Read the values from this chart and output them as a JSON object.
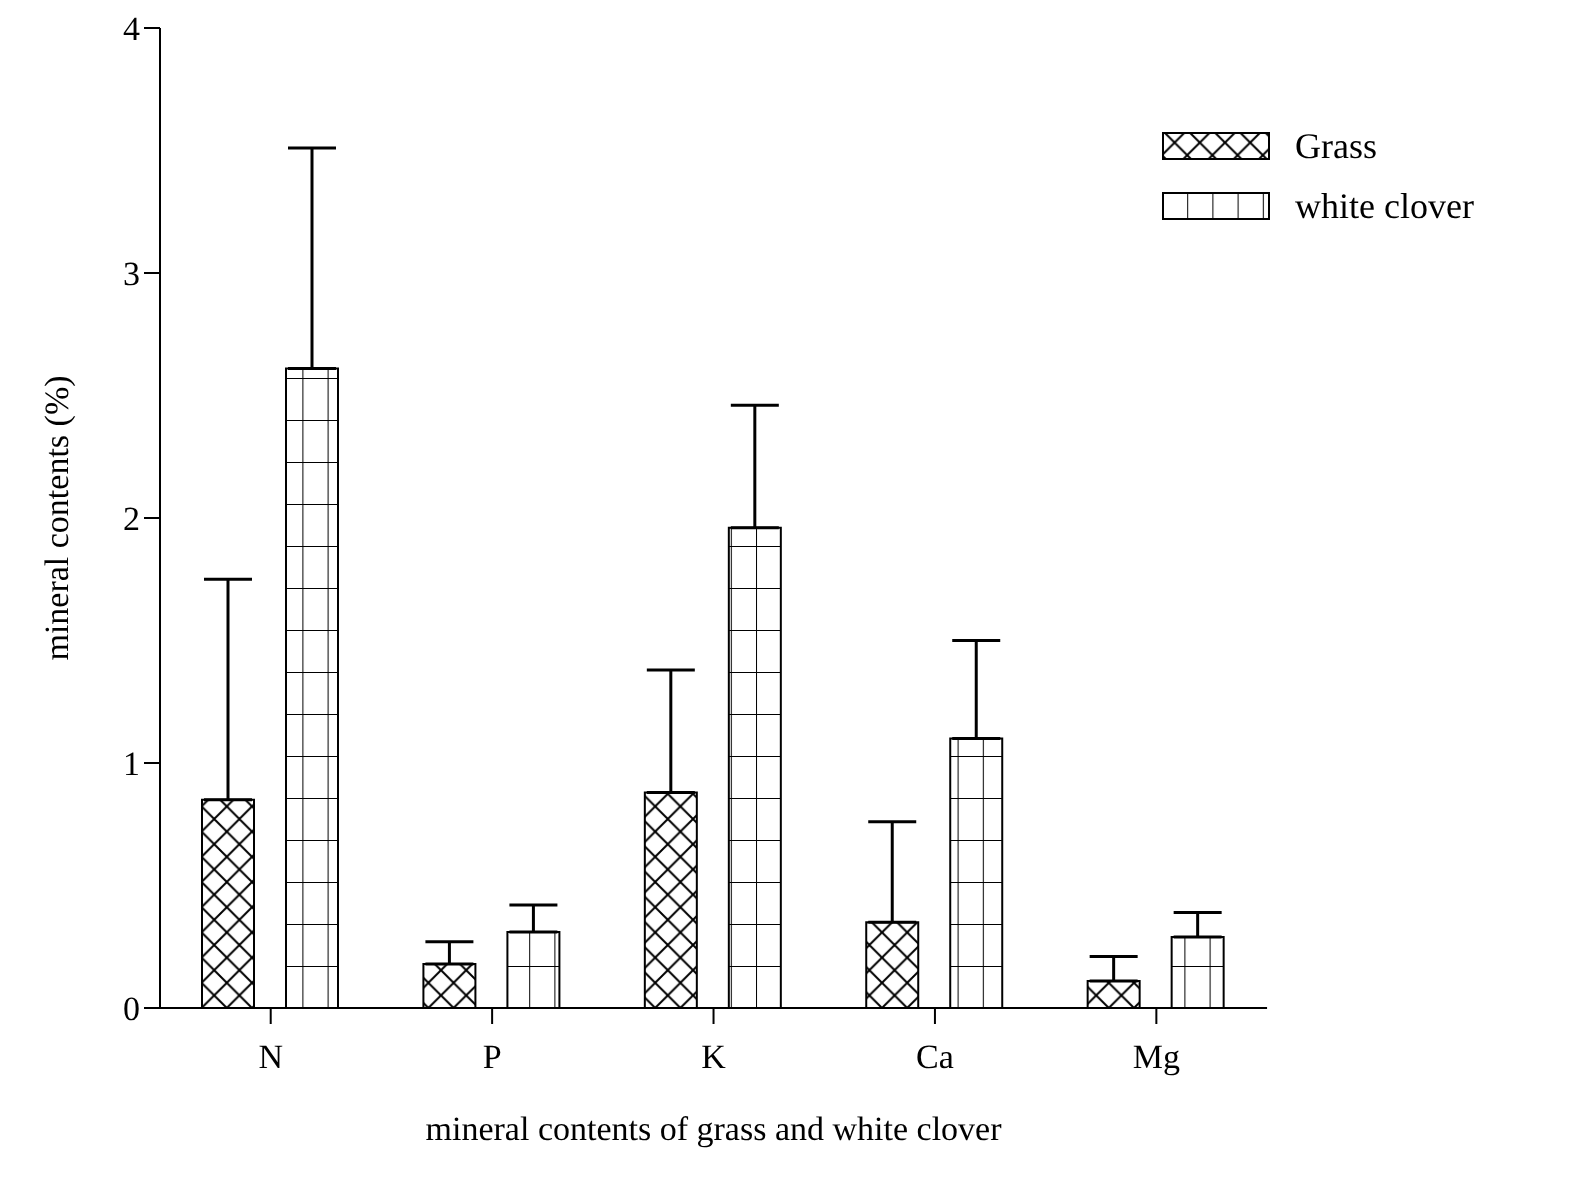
{
  "chart_data": {
    "type": "bar",
    "xlabel": "mineral contents of grass and white clover",
    "ylabel": "mineral contents (%)",
    "categories": [
      "N",
      "P",
      "K",
      "Ca",
      "Mg"
    ],
    "series": [
      {
        "name": "Grass",
        "color": "#000000",
        "values": [
          0.85,
          0.18,
          0.88,
          0.35,
          0.11
        ],
        "errors": [
          [
            0.85,
            1.75
          ],
          [
            0.18,
            0.27
          ],
          [
            0.88,
            1.38
          ],
          [
            0.35,
            0.76
          ],
          [
            0.11,
            0.21
          ]
        ]
      },
      {
        "name": "white clover",
        "color": "#000000",
        "values": [
          2.61,
          0.31,
          1.96,
          1.1,
          0.29
        ],
        "errors": [
          [
            2.61,
            3.51
          ],
          [
            0.31,
            0.42
          ],
          [
            1.96,
            2.46
          ],
          [
            1.1,
            1.5
          ],
          [
            0.29,
            0.39
          ]
        ]
      }
    ],
    "ylim": [
      0,
      4
    ],
    "yticks": [
      0,
      1,
      2,
      3,
      4
    ],
    "legend": "top right"
  }
}
